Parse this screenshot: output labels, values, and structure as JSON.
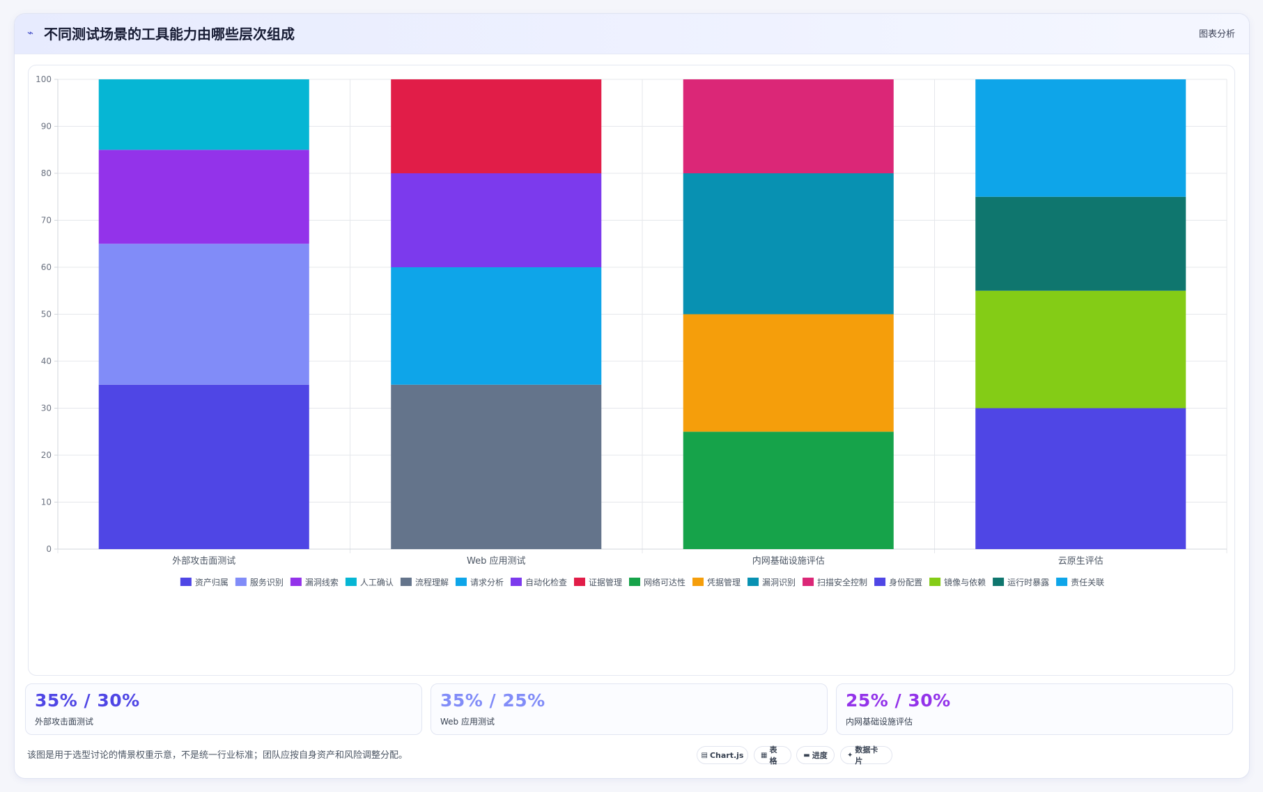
{
  "header": {
    "icon": "trend-line-icon",
    "title": "不同测试场景的工具能力由哪些层次组成",
    "action_label": "图表分析"
  },
  "chart_data": {
    "type": "bar",
    "stacked": true,
    "title": "",
    "xlabel": "",
    "ylabel": "",
    "ylim": [
      0,
      100
    ],
    "yticks": [
      0,
      10,
      20,
      30,
      40,
      50,
      60,
      70,
      80,
      90,
      100
    ],
    "grid": true,
    "legend_position": "bottom",
    "categories": [
      "外部攻击面测试",
      "Web 应用测试",
      "内网基础设施评估",
      "云原生评估"
    ],
    "series": [
      {
        "name": "资产归属",
        "color": "#4f46e5",
        "values": [
          35,
          null,
          null,
          null
        ]
      },
      {
        "name": "服务识别",
        "color": "#818cf8",
        "values": [
          30,
          null,
          null,
          null
        ]
      },
      {
        "name": "漏洞线索",
        "color": "#9333ea",
        "values": [
          20,
          null,
          null,
          null
        ]
      },
      {
        "name": "人工确认",
        "color": "#06b6d4",
        "values": [
          15,
          null,
          null,
          null
        ]
      },
      {
        "name": "流程理解",
        "color": "#64748b",
        "values": [
          null,
          35,
          null,
          null
        ]
      },
      {
        "name": "请求分析",
        "color": "#0ea5e9",
        "values": [
          null,
          25,
          null,
          null
        ]
      },
      {
        "name": "自动化检查",
        "color": "#7c3aed",
        "values": [
          null,
          20,
          null,
          null
        ]
      },
      {
        "name": "证据管理",
        "color": "#e11d48",
        "values": [
          null,
          20,
          null,
          null
        ]
      },
      {
        "name": "网络可达性",
        "color": "#16a34a",
        "values": [
          null,
          null,
          25,
          null
        ]
      },
      {
        "name": "凭据管理",
        "color": "#f59e0b",
        "values": [
          null,
          null,
          25,
          null
        ]
      },
      {
        "name": "漏洞识别",
        "color": "#0891b2",
        "values": [
          null,
          null,
          30,
          null
        ]
      },
      {
        "name": "扫描安全控制",
        "color": "#db2777",
        "values": [
          null,
          null,
          20,
          null
        ]
      },
      {
        "name": "身份配置",
        "color": "#4f46e5",
        "values": [
          null,
          null,
          null,
          30
        ]
      },
      {
        "name": "镜像与依赖",
        "color": "#84cc16",
        "values": [
          null,
          null,
          null,
          25
        ]
      },
      {
        "name": "运行时暴露",
        "color": "#0f766e",
        "values": [
          null,
          null,
          null,
          20
        ]
      },
      {
        "name": "责任关联",
        "color": "#0ea5e9",
        "values": [
          null,
          null,
          null,
          25
        ]
      }
    ]
  },
  "stats": [
    {
      "value": "35% / 30%",
      "label": "外部攻击面测试",
      "color": "#4f46e5"
    },
    {
      "value": "35% / 25%",
      "label": "Web 应用测试",
      "color": "#818cf8"
    },
    {
      "value": "25% / 30%",
      "label": "内网基础设施评估",
      "color": "#9333ea"
    }
  ],
  "footnote": "该图是用于选型讨论的情景权重示意，不是统一行业标准；团队应按自身资产和风险调整分配。",
  "view_options": [
    {
      "icon": "▤",
      "icon_name": "chart-icon",
      "label": "Chart.js"
    },
    {
      "icon": "▦",
      "icon_name": "table-icon",
      "label": "表格"
    },
    {
      "icon": "▬",
      "icon_name": "progress-icon",
      "label": "进度"
    },
    {
      "icon": "✦",
      "icon_name": "sparkle-icon",
      "label": "数据卡片"
    }
  ]
}
